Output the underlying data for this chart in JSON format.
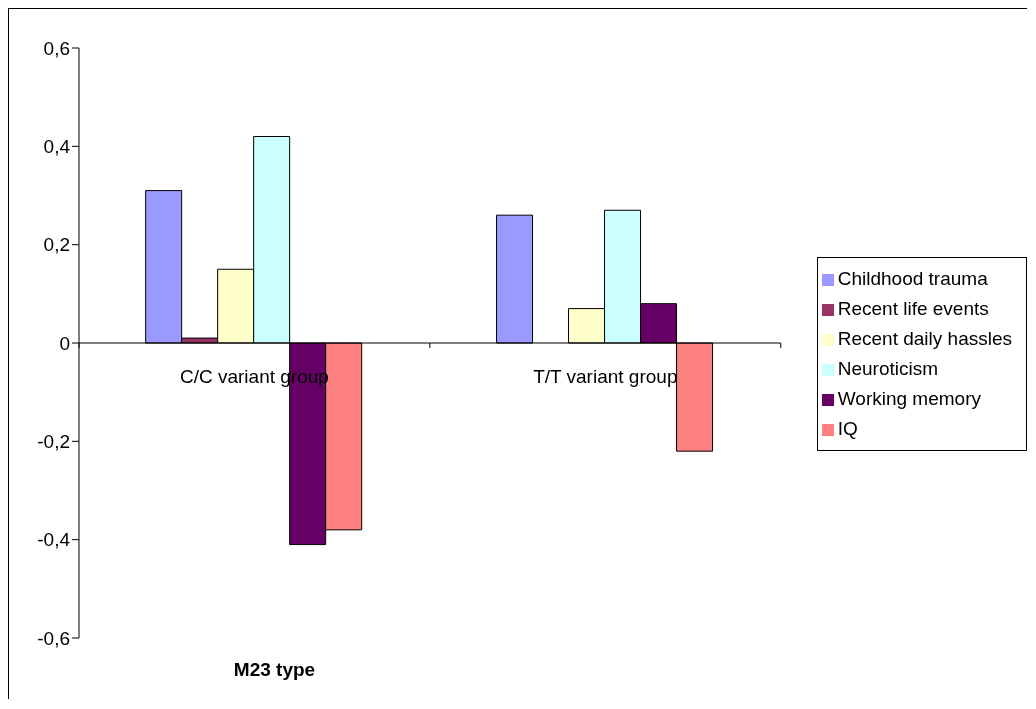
{
  "chart_data": {
    "type": "bar",
    "xlabel": "M23 type",
    "categories": [
      "C/C variant group",
      "T/T variant group"
    ],
    "series": [
      {
        "name": "Childhood trauma",
        "color": "#9999ff",
        "values": [
          0.31,
          0.26
        ]
      },
      {
        "name": "Recent life events",
        "color": "#993366",
        "values": [
          0.01,
          0.0
        ]
      },
      {
        "name": "Recent daily hassles",
        "color": "#ffffcc",
        "values": [
          0.15,
          0.07
        ]
      },
      {
        "name": "Neuroticism",
        "color": "#ccffff",
        "values": [
          0.42,
          0.27
        ]
      },
      {
        "name": "Working memory",
        "color": "#660066",
        "values": [
          -0.41,
          0.08
        ]
      },
      {
        "name": "IQ",
        "color": "#ff8080",
        "values": [
          -0.38,
          -0.22
        ]
      }
    ],
    "ylim": [
      -0.6,
      0.6
    ],
    "yticks": [
      {
        "value": -0.6,
        "label": "-0,6"
      },
      {
        "value": -0.4,
        "label": "-0,4"
      },
      {
        "value": -0.2,
        "label": "-0,2"
      },
      {
        "value": 0,
        "label": "0"
      },
      {
        "value": 0.2,
        "label": "0,2"
      },
      {
        "value": 0.4,
        "label": "0,4"
      },
      {
        "value": 0.6,
        "label": "0,6"
      }
    ],
    "grid": false,
    "legend": "right"
  }
}
